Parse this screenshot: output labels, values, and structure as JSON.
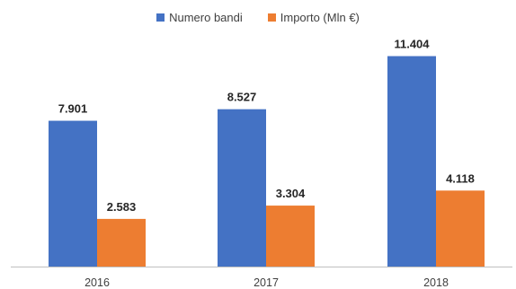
{
  "colors": {
    "series_0": "#4472C4",
    "series_1": "#ED7D31",
    "axis": "#BFBFBF"
  },
  "chart_data": {
    "type": "bar",
    "categories": [
      "2016",
      "2017",
      "2018"
    ],
    "series": [
      {
        "name": "Numero bandi",
        "values": [
          7901,
          8527,
          11404
        ],
        "labels": [
          "7.901",
          "8.527",
          "11.404"
        ]
      },
      {
        "name": "Importo (Mln €)",
        "values": [
          2583,
          3304,
          4118
        ],
        "labels": [
          "2.583",
          "3.304",
          "4.118"
        ]
      }
    ],
    "legend": {
      "position": "top"
    },
    "grid": false,
    "ylim": [
      0,
      12500
    ]
  }
}
